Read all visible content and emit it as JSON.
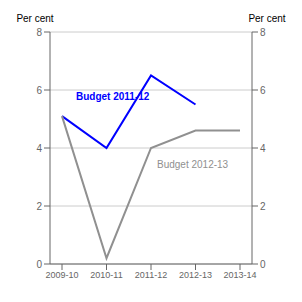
{
  "chart_data": {
    "type": "line",
    "categories": [
      "2009-10",
      "2010-11",
      "2011-12",
      "2012-13",
      "2013-14"
    ],
    "series": [
      {
        "name": "Budget 2011-12",
        "color": "#0000ff",
        "values": [
          5.1,
          4.0,
          6.5,
          5.5,
          null
        ]
      },
      {
        "name": "Budget 2012-13",
        "color": "#909090",
        "values": [
          5.1,
          0.2,
          4.0,
          4.6,
          4.6
        ]
      }
    ],
    "y_label": "Per cent",
    "y2_label": "Per cent",
    "ylim": [
      0,
      8
    ],
    "yticks": [
      0,
      2,
      4,
      6,
      8
    ],
    "y2lim": [
      0,
      8
    ],
    "y2ticks": [
      0,
      2,
      4,
      6,
      8
    ],
    "grid": true
  }
}
